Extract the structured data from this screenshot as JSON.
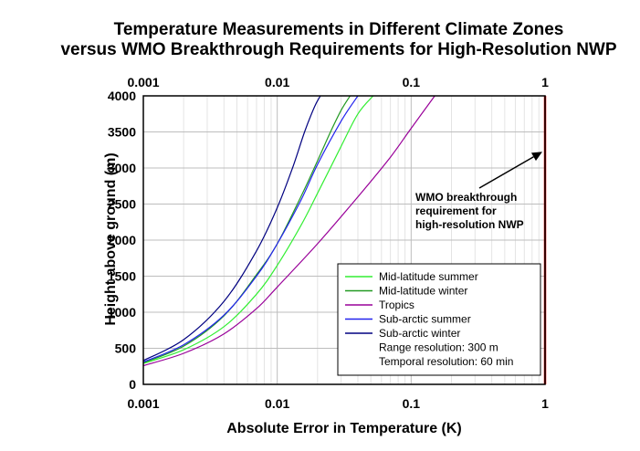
{
  "chart_data": {
    "type": "line",
    "title": [
      "Temperature Measurements in Different Climate Zones",
      "versus WMO Breakthrough Requirements for High-Resolution NWP"
    ],
    "xlabel": "Absolute Error in Temperature (K)",
    "ylabel": "Height above ground (m)",
    "xscale": "log",
    "xlim": [
      0.001,
      1
    ],
    "ylim": [
      0,
      4000
    ],
    "x_ticks": [
      "0.001",
      "0.01",
      "0.1",
      "1"
    ],
    "x_tick_values": [
      0.001,
      0.01,
      0.1,
      1
    ],
    "x_top_ticks": [
      "0.001",
      "0.01",
      "0.1",
      "1"
    ],
    "y_ticks": [
      "0",
      "500",
      "1000",
      "1500",
      "2000",
      "2500",
      "3000",
      "3500",
      "4000"
    ],
    "y_tick_values": [
      0,
      500,
      1000,
      1500,
      2000,
      2500,
      3000,
      3500,
      4000
    ],
    "grid": true,
    "legend_position": "bottom-right",
    "series": [
      {
        "name": "Mid-latitude summer",
        "color": "#33ee33",
        "x": [
          0.001,
          0.002,
          0.004,
          0.007,
          0.01,
          0.015,
          0.02,
          0.03,
          0.04,
          0.052
        ],
        "y": [
          290,
          480,
          800,
          1250,
          1650,
          2200,
          2650,
          3300,
          3750,
          4000
        ]
      },
      {
        "name": "Mid-latitude winter",
        "color": "#229922",
        "x": [
          0.001,
          0.002,
          0.004,
          0.007,
          0.01,
          0.015,
          0.02,
          0.025,
          0.03,
          0.035
        ],
        "y": [
          300,
          530,
          950,
          1520,
          1950,
          2600,
          3100,
          3500,
          3800,
          4000
        ]
      },
      {
        "name": "Tropics",
        "color": "#990099",
        "x": [
          0.001,
          0.002,
          0.004,
          0.007,
          0.01,
          0.02,
          0.04,
          0.07,
          0.1,
          0.15
        ],
        "y": [
          260,
          430,
          700,
          1050,
          1350,
          1950,
          2600,
          3150,
          3550,
          4000
        ]
      },
      {
        "name": "Sub-arctic summer",
        "color": "#2222ee",
        "x": [
          0.001,
          0.002,
          0.004,
          0.007,
          0.01,
          0.015,
          0.02,
          0.03,
          0.04
        ],
        "y": [
          310,
          550,
          960,
          1500,
          1950,
          2550,
          3050,
          3650,
          4000
        ]
      },
      {
        "name": "Sub-arctic winter",
        "color": "#000080",
        "x": [
          0.001,
          0.002,
          0.004,
          0.007,
          0.01,
          0.013,
          0.016,
          0.019,
          0.021
        ],
        "y": [
          330,
          620,
          1150,
          1850,
          2450,
          3000,
          3500,
          3850,
          4000
        ]
      }
    ],
    "reference_line": {
      "x": 1,
      "color": "#dd0000"
    },
    "legend_notes": [
      "Range resolution: 300 m",
      "Temporal resolution: 60 min"
    ],
    "annotation": {
      "lines": [
        "WMO breakthrough",
        "requirement for",
        "high-resolution NWP"
      ],
      "arrow_target": {
        "x": 1,
        "y": 3250
      }
    }
  }
}
